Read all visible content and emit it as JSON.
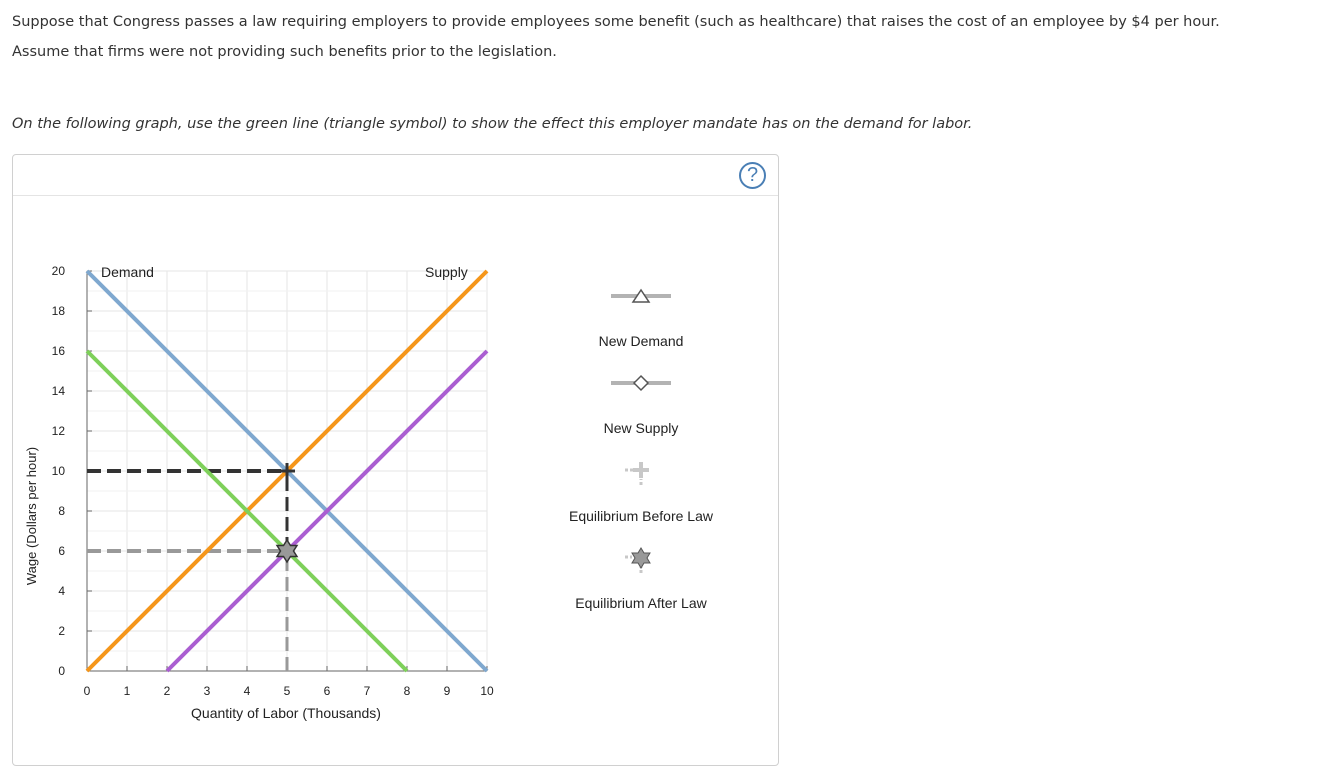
{
  "question": {
    "paragraph1": "Suppose that Congress passes a law requiring employers to provide employees some benefit (such as healthcare) that raises the cost of an employee by $4 per hour. Assume that firms were not providing such benefits prior to the legislation.",
    "instruction": "On the following graph, use the green line (triangle symbol) to show the effect this employer mandate has on the demand for labor."
  },
  "help": {
    "label": "?"
  },
  "graph": {
    "line_labels": {
      "demand": "Demand",
      "supply": "Supply"
    },
    "tools": [
      {
        "id": "new-demand",
        "label": "New Demand",
        "symbol": "triangle"
      },
      {
        "id": "new-supply",
        "label": "New Supply",
        "symbol": "diamond"
      },
      {
        "id": "equilibrium-before",
        "label": "Equilibrium Before Law",
        "symbol": "plus"
      },
      {
        "id": "equilibrium-after",
        "label": "Equilibrium After Law",
        "symbol": "star"
      }
    ],
    "colors": {
      "demand": "#7fa8cf",
      "supply": "#f5961a",
      "new_demand": "#7ed05a",
      "new_supply": "#aa5ed1",
      "eq_before": "#333333",
      "eq_after": "#999999",
      "grid": "#e6e6e6",
      "tool_gray": "#b3b3b3"
    }
  },
  "chart_data": {
    "type": "line",
    "xlabel": "Quantity of Labor (Thousands)",
    "ylabel": "Wage (Dollars per hour)",
    "xlim": [
      0,
      10
    ],
    "ylim": [
      0,
      20
    ],
    "x_ticks": [
      0,
      1,
      2,
      3,
      4,
      5,
      6,
      7,
      8,
      9,
      10
    ],
    "y_ticks": [
      0,
      2,
      4,
      6,
      8,
      10,
      12,
      14,
      16,
      18,
      20
    ],
    "grid": true,
    "series": [
      {
        "name": "Demand",
        "key": "demand",
        "points": [
          [
            0,
            20
          ],
          [
            10,
            0
          ]
        ]
      },
      {
        "name": "Supply",
        "key": "supply",
        "points": [
          [
            0,
            0
          ],
          [
            10,
            20
          ]
        ]
      },
      {
        "key": "new_demand",
        "points": [
          [
            0,
            16
          ],
          [
            8,
            0
          ]
        ]
      },
      {
        "key": "new_supply",
        "points": [
          [
            2,
            0
          ],
          [
            10,
            16
          ]
        ]
      }
    ],
    "equilibrium_before": {
      "x": 5,
      "y": 10
    },
    "equilibrium_after": {
      "x": 5,
      "y": 6
    }
  }
}
